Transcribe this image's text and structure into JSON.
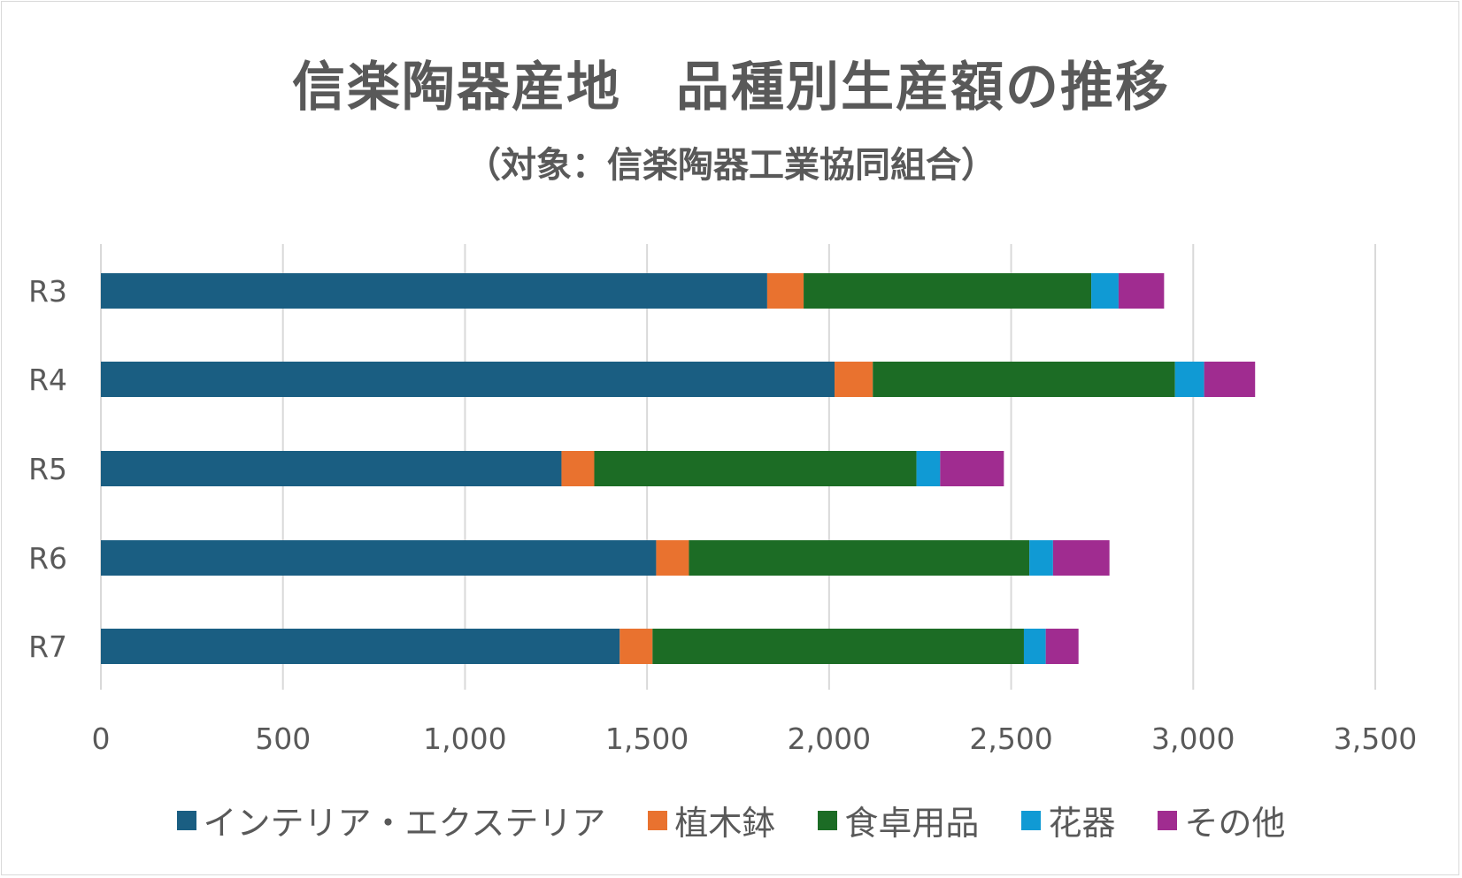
{
  "chart_data": {
    "type": "bar",
    "orientation": "horizontal",
    "stacked": true,
    "title": "信楽陶器産地　品種別生産額の推移",
    "subtitle": "（対象：信楽陶器工業協同組合）",
    "categories": [
      "R3",
      "R4",
      "R5",
      "R6",
      "R7"
    ],
    "series": [
      {
        "name": "インテリア・エクステリア",
        "color": "#1a5e82",
        "values": [
          1830,
          2015,
          1265,
          1525,
          1425
        ]
      },
      {
        "name": "植木鉢",
        "color": "#e9722f",
        "values": [
          100,
          105,
          90,
          90,
          90
        ]
      },
      {
        "name": "食卓用品",
        "color": "#1c6c25",
        "values": [
          790,
          830,
          885,
          935,
          1020
        ]
      },
      {
        "name": "花器",
        "color": "#109ad4",
        "values": [
          75,
          80,
          65,
          65,
          60
        ]
      },
      {
        "name": "その他",
        "color": "#a02c90",
        "values": [
          125,
          140,
          175,
          155,
          90
        ]
      }
    ],
    "x_ticks": [
      "0",
      "500",
      "1,000",
      "1,500",
      "2,000",
      "2,500",
      "3,000",
      "3,500"
    ],
    "xlim": [
      0,
      3500
    ],
    "grid": true,
    "legend_position": "bottom",
    "xlabel": "",
    "ylabel": ""
  }
}
